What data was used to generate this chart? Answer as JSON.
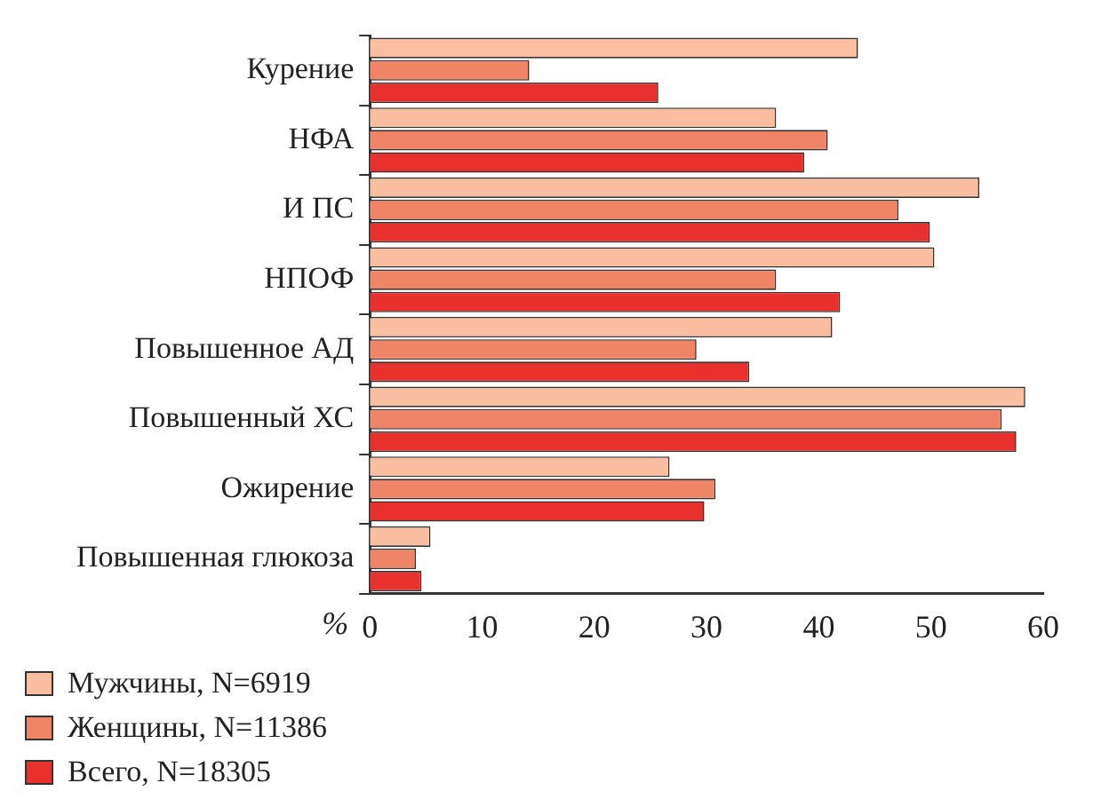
{
  "chart_data": {
    "type": "bar",
    "orientation": "horizontal",
    "xlabel": "%",
    "categories": [
      "Курение",
      "НФА",
      "И ПС",
      "НПОФ",
      "Повышенное АД",
      "Повышенный ХС",
      "Ожирение",
      "Повышенная глюкоза"
    ],
    "series": [
      {
        "name": "Мужчины, N=6919",
        "color": "#f9bda0",
        "values": [
          43.5,
          36.2,
          54.3,
          50.3,
          41.2,
          58.4,
          26.7,
          5.4
        ]
      },
      {
        "name": "Женщины, N=11386",
        "color": "#f08466",
        "values": [
          14.2,
          40.8,
          47.1,
          36.2,
          29.1,
          56.3,
          30.8,
          4.1
        ]
      },
      {
        "name": "Всего, N=18305",
        "color": "#e8302c",
        "values": [
          25.7,
          38.7,
          49.9,
          41.9,
          33.8,
          57.6,
          29.8,
          4.6
        ]
      }
    ],
    "xlim": [
      0,
      60
    ],
    "xticks": [
      0,
      10,
      20,
      30,
      40,
      50,
      60
    ],
    "grid": false,
    "legend": "bottom left"
  }
}
